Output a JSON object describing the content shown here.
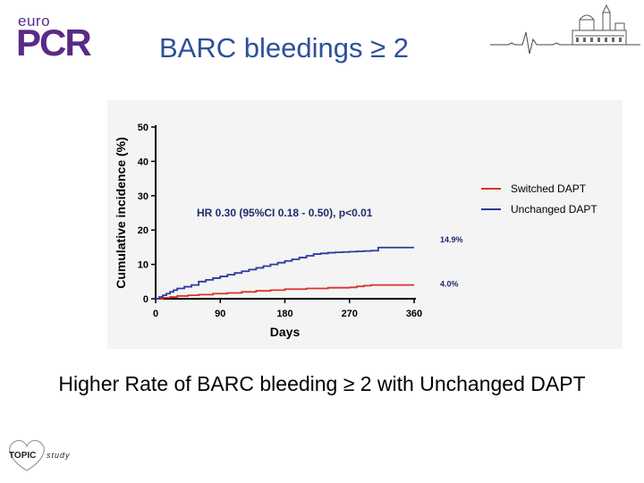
{
  "brand": {
    "logo_small": "euro",
    "logo_large": "PCR"
  },
  "slide": {
    "title": "BARC bleedings ≥ 2",
    "caption": "Higher Rate of BARC bleeding ≥ 2 with Unchanged DAPT"
  },
  "footer_logo": {
    "word": "TOPIC",
    "sub": "study"
  },
  "chart_data": {
    "type": "line",
    "xlabel": "Days",
    "ylabel": "Cumulative incidence (%)",
    "xlim": [
      0,
      360
    ],
    "ylim": [
      0,
      50
    ],
    "x_ticks": [
      0,
      90,
      180,
      270,
      360
    ],
    "y_ticks": [
      0,
      10,
      20,
      30,
      40,
      50
    ],
    "annotation": "HR 0.30 (95%CI 0.18 - 0.50), p<0.01",
    "legend_position": "right",
    "grid": false,
    "series": [
      {
        "name": "Switched DAPT",
        "color": "#d9332e",
        "end_label": "4.0%",
        "x": [
          0,
          10,
          20,
          30,
          45,
          60,
          80,
          100,
          120,
          140,
          160,
          180,
          210,
          240,
          270,
          280,
          290,
          300,
          330,
          360
        ],
        "y": [
          0,
          0.3,
          0.5,
          0.8,
          1.0,
          1.2,
          1.5,
          1.7,
          2.0,
          2.3,
          2.5,
          2.8,
          3.0,
          3.2,
          3.3,
          3.6,
          3.8,
          4.0,
          4.0,
          4.0
        ]
      },
      {
        "name": "Unchanged DAPT",
        "color": "#2f3a9e",
        "end_label": "14.9%",
        "x": [
          0,
          5,
          10,
          15,
          20,
          25,
          30,
          40,
          50,
          60,
          70,
          80,
          90,
          100,
          110,
          120,
          130,
          140,
          150,
          160,
          170,
          180,
          190,
          200,
          210,
          220,
          230,
          240,
          250,
          260,
          270,
          280,
          290,
          300,
          310,
          320,
          330,
          340,
          350,
          360
        ],
        "y": [
          0,
          0.5,
          1.0,
          1.5,
          2.0,
          2.5,
          3.0,
          3.5,
          4.0,
          5.0,
          5.5,
          6.0,
          6.5,
          7.0,
          7.5,
          8.0,
          8.5,
          9.0,
          9.5,
          10.0,
          10.5,
          11.0,
          11.5,
          12.0,
          12.5,
          13.0,
          13.2,
          13.4,
          13.5,
          13.6,
          13.7,
          13.8,
          13.9,
          14.0,
          14.9,
          14.9,
          14.9,
          14.9,
          14.9,
          14.9
        ]
      }
    ]
  }
}
